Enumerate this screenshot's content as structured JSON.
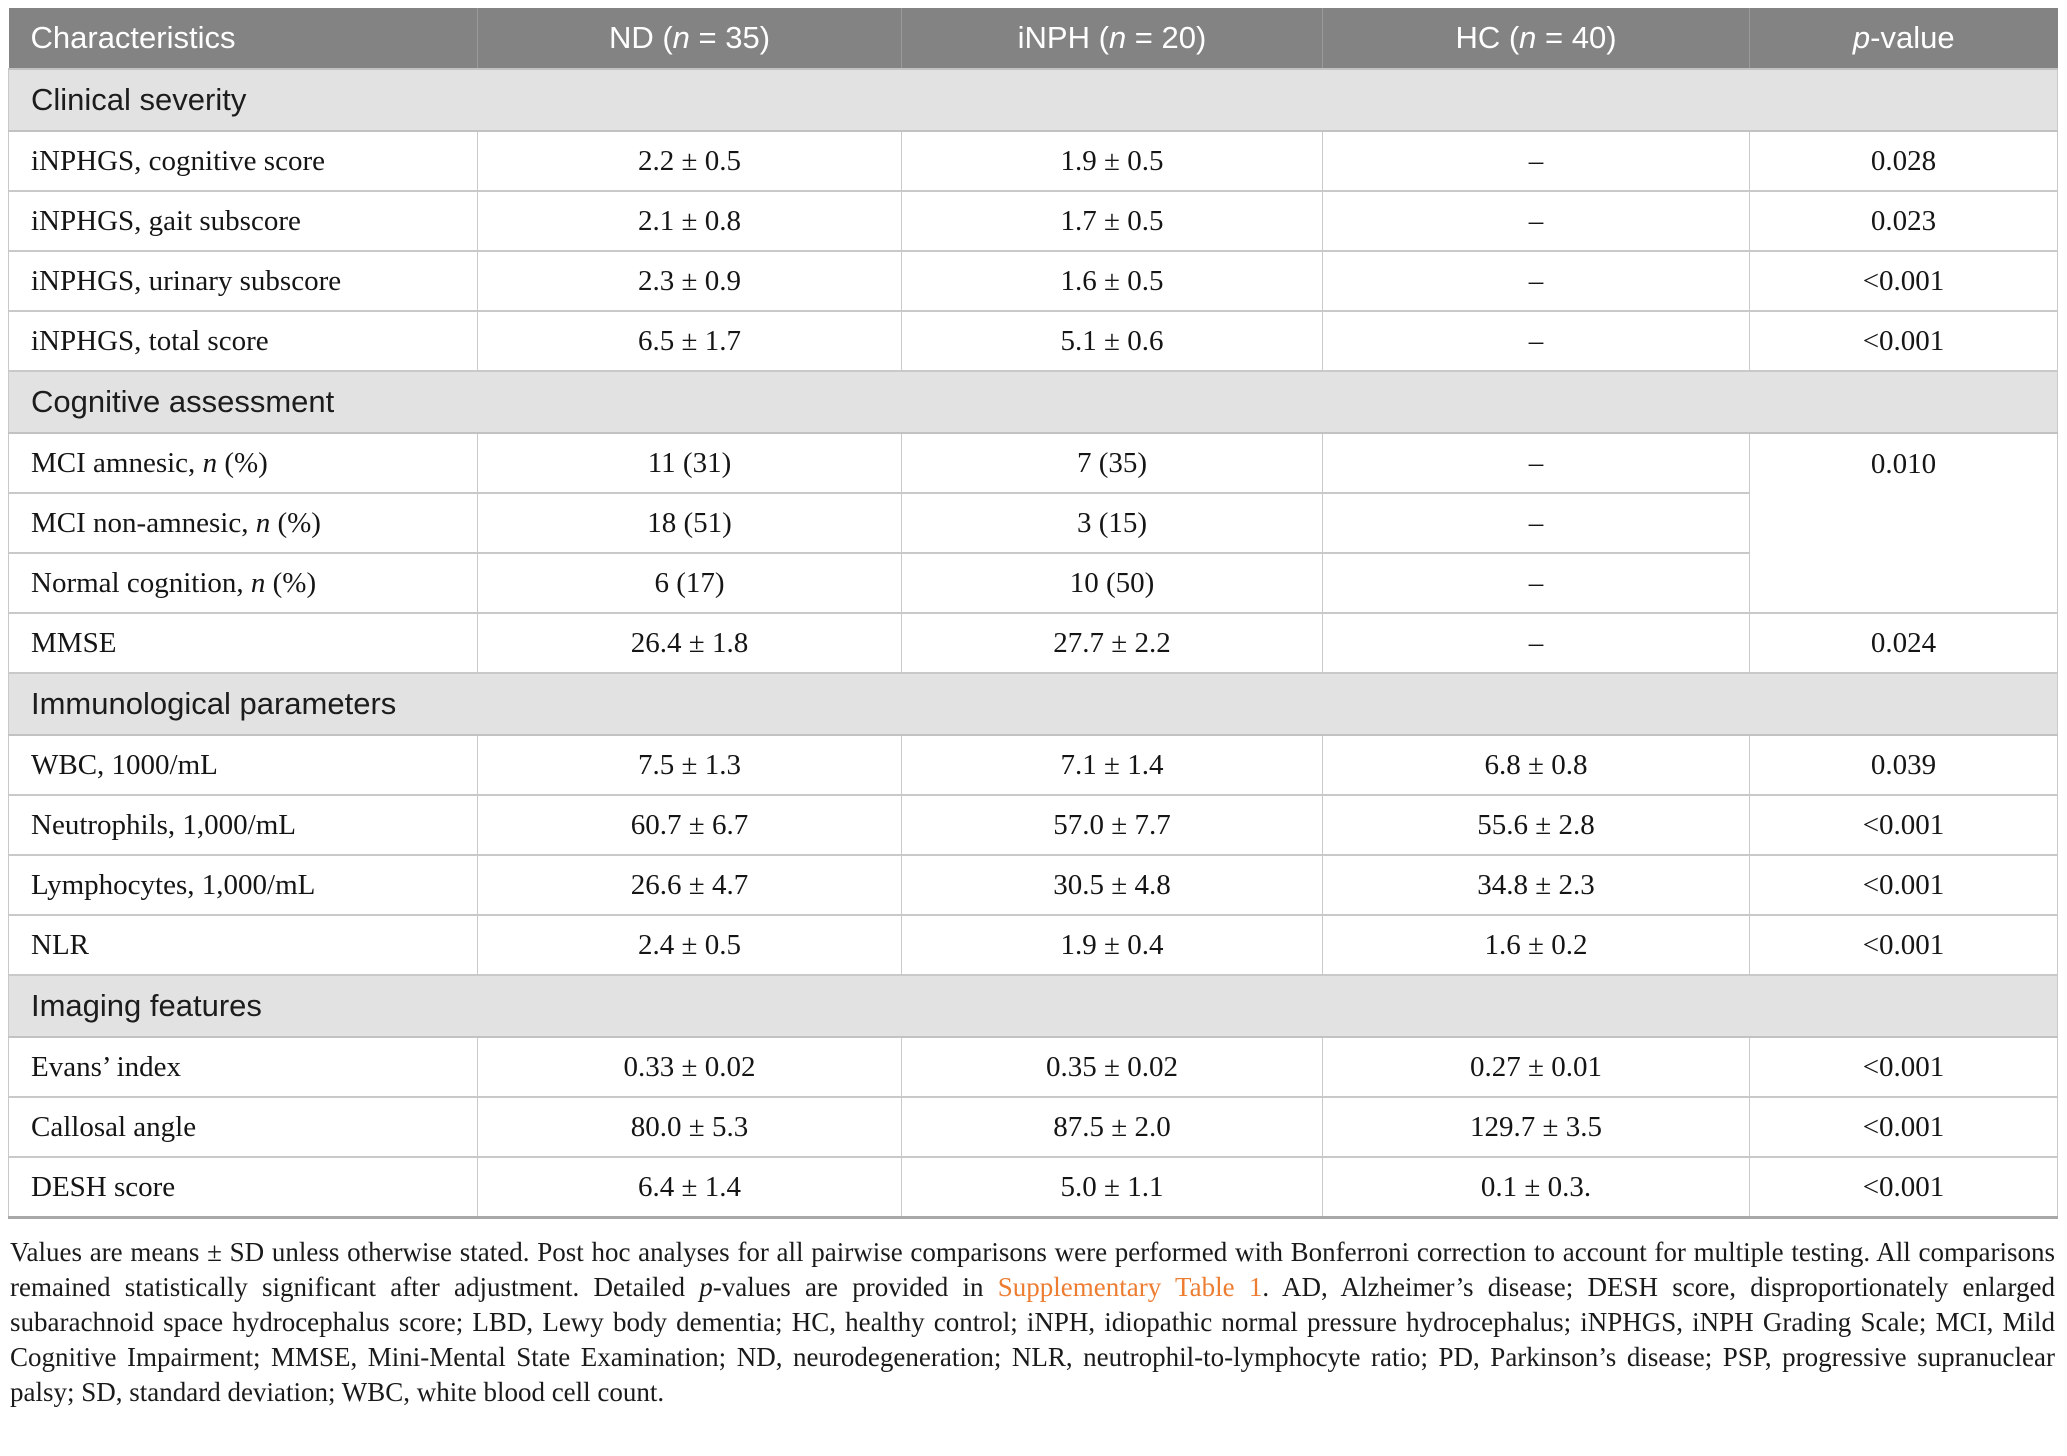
{
  "colors": {
    "header_bg": "#838383",
    "section_bg": "#e2e2e2",
    "link_orange": "#ed7d31",
    "header_text": "#ffffff",
    "body_text": "#151515"
  },
  "table": {
    "columns": [
      {
        "pre": "Characteristics",
        "it": "",
        "post": ""
      },
      {
        "pre": "ND (",
        "it": "n",
        "post": " = 35)"
      },
      {
        "pre": "iNPH (",
        "it": "n",
        "post": " = 20)"
      },
      {
        "pre": "HC (",
        "it": "n",
        "post": " = 40)"
      },
      {
        "pre": "",
        "it": "p",
        "post": "-value"
      }
    ],
    "sections": [
      {
        "title": "Clinical severity",
        "rows": [
          {
            "label_pre": "iNPHGS, cognitive score",
            "label_it": "",
            "label_post": "",
            "nd": "2.2 ± 0.5",
            "inph": "1.9 ± 0.5",
            "hc": "–",
            "p": "0.028"
          },
          {
            "label_pre": "iNPHGS, gait subscore",
            "label_it": "",
            "label_post": "",
            "nd": "2.1 ± 0.8",
            "inph": "1.7 ± 0.5",
            "hc": "–",
            "p": "0.023"
          },
          {
            "label_pre": "iNPHGS, urinary subscore",
            "label_it": "",
            "label_post": "",
            "nd": "2.3 ± 0.9",
            "inph": "1.6 ± 0.5",
            "hc": "–",
            "p": "<0.001"
          },
          {
            "label_pre": "iNPHGS, total score",
            "label_it": "",
            "label_post": "",
            "nd": "6.5 ± 1.7",
            "inph": "5.1 ± 0.6",
            "hc": "–",
            "p": "<0.001"
          }
        ]
      },
      {
        "title": "Cognitive assessment",
        "rows": [
          {
            "label_pre": "MCI amnesic, ",
            "label_it": "n",
            "label_post": " (%)",
            "nd": "11 (31)",
            "inph": "7 (35)",
            "hc": "–",
            "p": "0.010",
            "p_rowspan": 3
          },
          {
            "label_pre": "MCI non-amnesic, ",
            "label_it": "n",
            "label_post": " (%)",
            "nd": "18 (51)",
            "inph": "3 (15)",
            "hc": "–",
            "p": null
          },
          {
            "label_pre": "Normal cognition, ",
            "label_it": "n",
            "label_post": " (%)",
            "nd": "6 (17)",
            "inph": "10 (50)",
            "hc": "–",
            "p": null
          },
          {
            "label_pre": "MMSE",
            "label_it": "",
            "label_post": "",
            "nd": "26.4 ± 1.8",
            "inph": "27.7 ± 2.2",
            "hc": "–",
            "p": "0.024"
          }
        ]
      },
      {
        "title": "Immunological parameters",
        "rows": [
          {
            "label_pre": "WBC, 1000/mL",
            "label_it": "",
            "label_post": "",
            "nd": "7.5 ± 1.3",
            "inph": "7.1 ± 1.4",
            "hc": "6.8 ± 0.8",
            "p": "0.039"
          },
          {
            "label_pre": "Neutrophils, 1,000/mL",
            "label_it": "",
            "label_post": "",
            "nd": "60.7 ± 6.7",
            "inph": "57.0 ± 7.7",
            "hc": "55.6 ± 2.8",
            "p": "<0.001"
          },
          {
            "label_pre": "Lymphocytes, 1,000/mL",
            "label_it": "",
            "label_post": "",
            "nd": "26.6 ± 4.7",
            "inph": "30.5 ± 4.8",
            "hc": "34.8 ± 2.3",
            "p": "<0.001"
          },
          {
            "label_pre": "NLR",
            "label_it": "",
            "label_post": "",
            "nd": "2.4 ± 0.5",
            "inph": "1.9 ± 0.4",
            "hc": "1.6 ± 0.2",
            "p": "<0.001"
          }
        ]
      },
      {
        "title": "Imaging features",
        "rows": [
          {
            "label_pre": "Evans’ index",
            "label_it": "",
            "label_post": "",
            "nd": "0.33 ± 0.02",
            "inph": "0.35 ± 0.02",
            "hc": "0.27 ± 0.01",
            "p": "<0.001"
          },
          {
            "label_pre": "Callosal angle",
            "label_it": "",
            "label_post": "",
            "nd": "80.0 ± 5.3",
            "inph": "87.5 ± 2.0",
            "hc": "129.7 ± 3.5",
            "p": "<0.001"
          },
          {
            "label_pre": "DESH score",
            "label_it": "",
            "label_post": "",
            "nd": "6.4 ± 1.4",
            "inph": "5.0 ± 1.1",
            "hc": "0.1 ± 0.3.",
            "p": "<0.001"
          }
        ]
      }
    ]
  },
  "footnote": {
    "segments": [
      {
        "text": "Values are means ± SD unless otherwise stated. Post hoc analyses for all pairwise comparisons were performed with Bonferroni correction to account for multiple testing. All comparisons remained statistically significant after adjustment. Detailed ",
        "style": ""
      },
      {
        "text": "p",
        "style": "it"
      },
      {
        "text": "-values are provided in ",
        "style": ""
      },
      {
        "text": "Supplementary Table 1",
        "style": "link"
      },
      {
        "text": ". AD, Alzheimer’s disease; DESH score, disproportionately enlarged subarachnoid space hydrocephalus score; LBD, Lewy body dementia; HC, healthy control; iNPH, idiopathic normal pressure hydrocephalus; iNPHGS, iNPH Grading Scale; MCI, Mild Cognitive Impairment; MMSE, Mini-Mental State Examination; ND, neurodegeneration; NLR, neutrophil-to-lymphocyte ratio; PD, Parkinson’s disease; PSP, progressive supranuclear palsy; SD, standard deviation; WBC, white blood cell count.",
        "style": ""
      }
    ]
  }
}
